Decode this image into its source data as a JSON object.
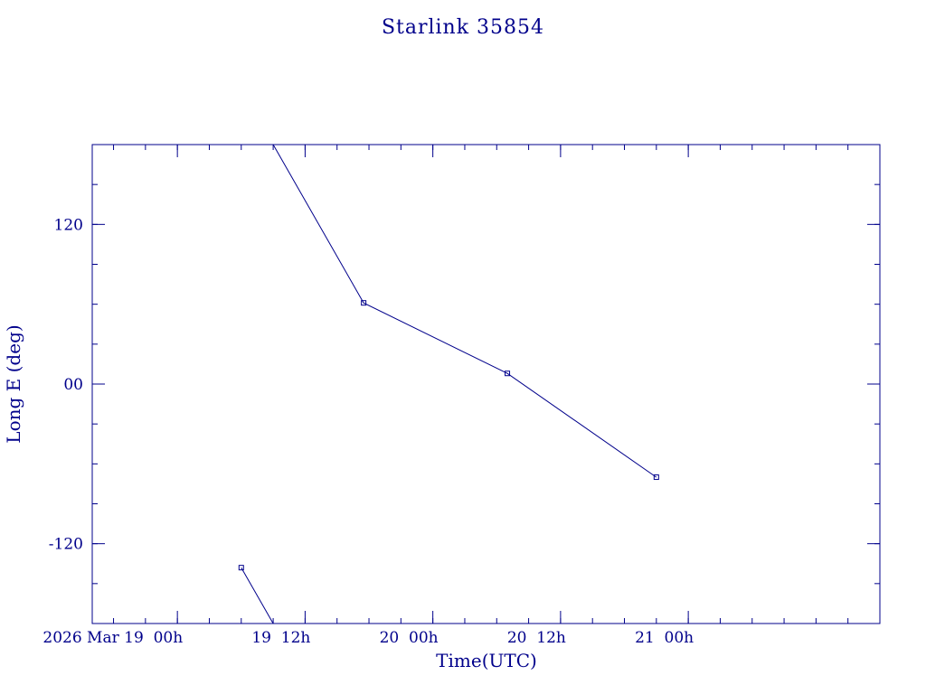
{
  "chart_data": {
    "type": "line",
    "title": "Starlink 35854",
    "xlabel": "Time(UTC)",
    "ylabel": "Long E (deg)",
    "color": "#00008b",
    "xlim": [
      "2026-03-18T16:00Z",
      "2026-03-21T18:00Z"
    ],
    "ylim": [
      -180,
      180
    ],
    "x_ticks_major": [
      {
        "x": "2026-03-19T00:00Z",
        "label": "2026 Mar 19  00h"
      },
      {
        "x": "2026-03-19T12:00Z",
        "label": "19  12h"
      },
      {
        "x": "2026-03-20T00:00Z",
        "label": "20  00h"
      },
      {
        "x": "2026-03-20T12:00Z",
        "label": "20  12h"
      },
      {
        "x": "2026-03-21T00:00Z",
        "label": "21  00h"
      }
    ],
    "y_ticks_major": [
      {
        "y": 120,
        "label": "120"
      },
      {
        "y": 0,
        "label": "00"
      },
      {
        "y": -120,
        "label": "-120"
      }
    ],
    "series": [
      {
        "points": [
          {
            "x": "2026-03-19T06:00Z",
            "y": -138,
            "marker": true
          },
          {
            "x": "2026-03-19T09:00Z",
            "y": -180,
            "marker": false
          }
        ]
      },
      {
        "points": [
          {
            "x": "2026-03-19T09:00Z",
            "y": 180,
            "marker": false
          },
          {
            "x": "2026-03-19T17:30Z",
            "y": 61,
            "marker": true
          },
          {
            "x": "2026-03-20T07:00Z",
            "y": 8,
            "marker": true
          },
          {
            "x": "2026-03-20T21:00Z",
            "y": -70,
            "marker": true
          }
        ]
      }
    ]
  }
}
